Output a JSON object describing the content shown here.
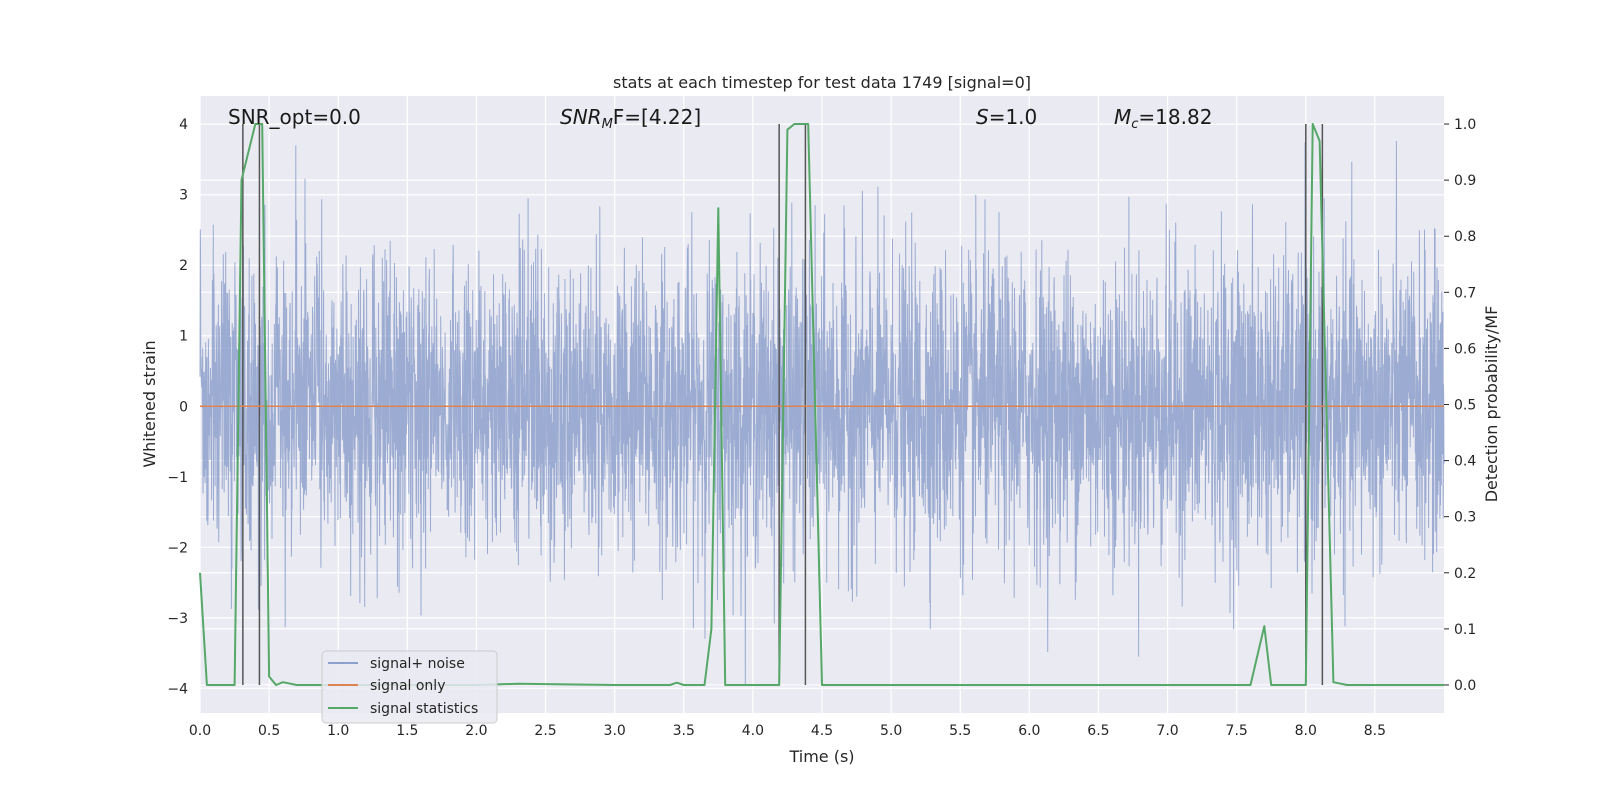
{
  "chart_data": {
    "type": "line",
    "title": "stats at each timestep for test data 1749 [signal=0]",
    "xlabel": "Time (s)",
    "ylabel": "Whitened strain",
    "y2label": "Detection probability/MF",
    "xlim": [
      0,
      9.0
    ],
    "ylim": [
      -4.35,
      4.4
    ],
    "y2lim": [
      -0.05,
      1.05
    ],
    "x_ticks": [
      "0.0",
      "0.5",
      "1.0",
      "1.5",
      "2.0",
      "2.5",
      "3.0",
      "3.5",
      "4.0",
      "4.5",
      "5.0",
      "5.5",
      "6.0",
      "6.5",
      "7.0",
      "7.5",
      "8.0",
      "8.5"
    ],
    "y_ticks": [
      "4",
      "3",
      "2",
      "1",
      "0",
      "−1",
      "−2",
      "−3",
      "−4"
    ],
    "y2_ticks": [
      "1.0",
      "0.9",
      "0.8",
      "0.7",
      "0.6",
      "0.5",
      "0.4",
      "0.3",
      "0.2",
      "0.1",
      "0.0"
    ],
    "grid": true,
    "legend_position": "lower-left",
    "annotations": {
      "snr_opt": "SNR_opt=0.0",
      "snr_mf_label": "SNR",
      "snr_mf_sub": "M",
      "snr_mf_rest": "F=[4.22]",
      "s_label": "S",
      "s_rest": "=1.0",
      "mc_label": "M",
      "mc_sub": "c",
      "mc_rest": "=18.82"
    },
    "series": [
      {
        "name": "signal+ noise",
        "color": "#8da0cb"
      },
      {
        "name": "signal only",
        "color": "#dd8452"
      },
      {
        "name": "signal statistics",
        "color": "#55a868",
        "x": [
          0.0,
          0.05,
          0.25,
          0.3,
          0.4,
          0.45,
          0.5,
          0.55,
          0.6,
          0.7,
          0.8,
          1.0,
          2.0,
          2.3,
          3.0,
          3.4,
          3.45,
          3.5,
          3.65,
          3.7,
          3.75,
          3.8,
          4.0,
          4.19,
          4.25,
          4.3,
          4.4,
          4.5,
          7.6,
          7.7,
          7.75,
          8.0,
          8.05,
          8.1,
          8.2,
          8.3,
          9.0
        ],
        "values": [
          0.2,
          0.0,
          0.0,
          0.9,
          1.0,
          1.0,
          0.015,
          0.0,
          0.005,
          0.0,
          0.0,
          0.0,
          0.0,
          0.002,
          0.0,
          0.0,
          0.004,
          0.0,
          0.0,
          0.1,
          0.85,
          0.0,
          0.0,
          0.0,
          0.99,
          1.0,
          1.0,
          0.0,
          0.0,
          0.105,
          0.0,
          0.0,
          1.0,
          0.97,
          0.005,
          0.0,
          0.0
        ]
      }
    ],
    "vertical_markers": [
      0.31,
      0.43,
      4.19,
      4.38,
      8.0,
      8.12
    ]
  }
}
